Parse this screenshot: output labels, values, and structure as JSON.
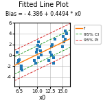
{
  "chart_data": {
    "type": "scatter",
    "title": "Fitted Line Plot",
    "subtitle": "Bias = - 4.386 + 0.4494 * x0",
    "x_label": "x0",
    "xlim": [
      5.5,
      16.5
    ],
    "ylim": [
      -5.8,
      6.0
    ],
    "xticks": [
      6.5,
      {
        "value": 10.0,
        "label": "10.0"
      },
      12.5,
      {
        "value": 15.0,
        "label": "15.0"
      }
    ],
    "yticks": [
      -4,
      -2,
      0,
      2,
      4,
      6
    ],
    "grid": true,
    "legend": "upper left",
    "series": [
      {
        "type": "scatter",
        "marker": "square",
        "x": [
          6.0,
          6.2,
          6.5,
          6.8,
          7.0,
          9.5,
          9.8,
          10.0,
          10.2,
          10.5,
          10.8,
          12.5,
          12.8,
          13.0,
          13.2,
          13.5,
          15.0,
          15.2,
          15.5,
          15.8,
          6.3,
          6.9,
          10.3,
          10.6,
          12.3,
          12.9,
          13.3,
          15.3,
          15.6,
          9.7,
          10.1
        ],
        "values": [
          0.5,
          -1.5,
          -0.8,
          -2.0,
          -2.8,
          -1.0,
          0.5,
          1.0,
          -0.5,
          1.5,
          0.0,
          0.5,
          1.5,
          2.0,
          -0.5,
          3.0,
          1.5,
          3.5,
          4.5,
          4.0,
          -1.0,
          -2.5,
          2.5,
          0.8,
          -1.0,
          0.0,
          -1.5,
          2.5,
          3.0,
          -1.5,
          1.8
        ]
      },
      {
        "name": "f",
        "type": "line",
        "line_style": "solid",
        "x": [
          5.5,
          16.5
        ],
        "values": [
          -1.9143,
          3.0291
        ]
      },
      {
        "name": "95% CI",
        "type": "band",
        "line_style": "dashed",
        "x": [
          5.5,
          16.5
        ],
        "upper": [
          -0.3143,
          4.6291
        ],
        "lower": [
          -3.5143,
          1.4291
        ]
      },
      {
        "name": "95% PI",
        "type": "band",
        "line_style": "dashed",
        "x": [
          5.5,
          16.5
        ],
        "upper": [
          0.8857,
          5.8291
        ],
        "lower": [
          -4.7143,
          0.2291
        ]
      }
    ]
  }
}
